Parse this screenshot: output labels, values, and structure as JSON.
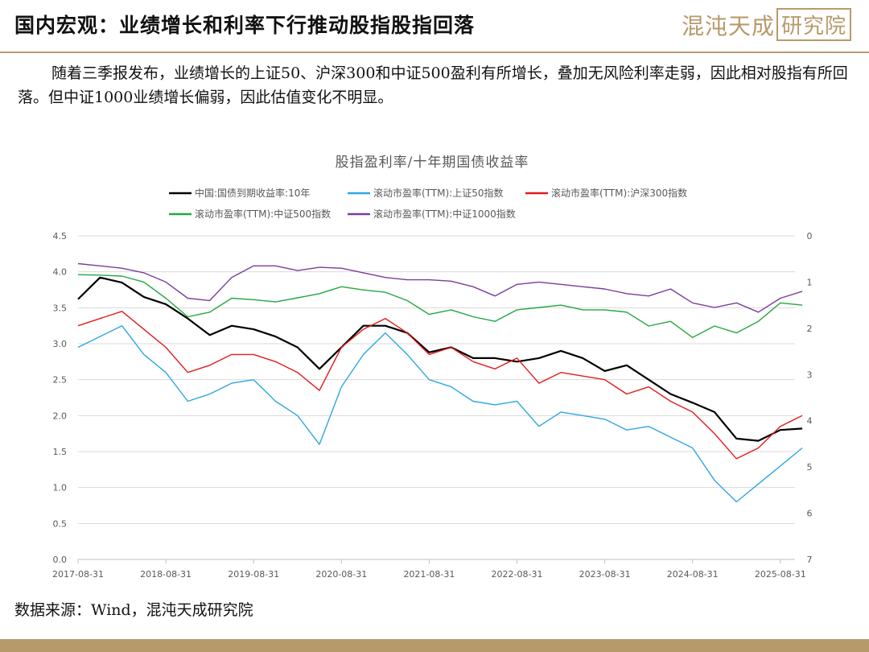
{
  "header": {
    "title": "国内宏观：业绩增长和利率下行推动股指股指回落",
    "logo_text": "混沌天成",
    "logo_box_text": "研究院"
  },
  "body_text": "随着三季报发布，业绩增长的上证50、沪深300和中证500盈利有所增长，叠加无风险利率走弱，因此相对股指有所回落。但中证1000业绩增长偏弱，因此估值变化不明显。",
  "source": "数据来源：Wind，混沌天成研究院",
  "colors": {
    "accent": "#b79a6a"
  },
  "chart_data": {
    "type": "line",
    "title": "股指盈利率/十年期国债收益率",
    "x_ticks": [
      "2017-08-31",
      "2018-08-31",
      "2019-08-31",
      "2020-08-31",
      "2021-08-31",
      "2022-08-31",
      "2023-08-31",
      "2024-08-31",
      "2025-08-31"
    ],
    "x": [
      "2017-08",
      "2017-11",
      "2018-02",
      "2018-05",
      "2018-08",
      "2018-11",
      "2019-02",
      "2019-05",
      "2019-08",
      "2019-11",
      "2020-02",
      "2020-05",
      "2020-08",
      "2020-11",
      "2021-02",
      "2021-05",
      "2021-08",
      "2021-11",
      "2022-02",
      "2022-05",
      "2022-08",
      "2022-11",
      "2023-02",
      "2023-05",
      "2023-08",
      "2023-11",
      "2024-02",
      "2024-05",
      "2024-08",
      "2024-11",
      "2025-02",
      "2025-05",
      "2025-08",
      "2025-11"
    ],
    "left_axis": {
      "ylim": [
        0,
        4.5
      ],
      "ticks": [
        "0.0",
        "0.5",
        "1.0",
        "1.5",
        "2.0",
        "2.5",
        "3.0",
        "3.5",
        "4.0",
        "4.5"
      ]
    },
    "right_axis": {
      "ylim": [
        0,
        7
      ],
      "inverted": true,
      "ticks": [
        "0",
        "1",
        "2",
        "3",
        "4",
        "5",
        "6",
        "7"
      ]
    },
    "grid": true,
    "legend_position": "top",
    "series": [
      {
        "name": "中国:国债到期收益率:10年",
        "color": "#000000",
        "axis": "left",
        "values": [
          3.62,
          3.92,
          3.85,
          3.65,
          3.55,
          3.35,
          3.12,
          3.25,
          3.2,
          3.1,
          2.95,
          2.65,
          2.95,
          3.25,
          3.25,
          3.15,
          2.88,
          2.95,
          2.8,
          2.8,
          2.75,
          2.8,
          2.9,
          2.8,
          2.62,
          2.7,
          2.5,
          2.3,
          2.18,
          2.05,
          1.68,
          1.65,
          1.8,
          1.82
        ]
      },
      {
        "name": "滚动市盈率(TTM):上证50指数",
        "color": "#2ea7e0",
        "axis": "left",
        "values": [
          2.95,
          3.1,
          3.25,
          2.85,
          2.6,
          2.2,
          2.3,
          2.45,
          2.5,
          2.2,
          2.0,
          1.6,
          2.4,
          2.85,
          3.15,
          2.85,
          2.5,
          2.4,
          2.2,
          2.15,
          2.2,
          1.85,
          2.05,
          2.0,
          1.95,
          1.8,
          1.85,
          1.7,
          1.55,
          1.1,
          0.8,
          1.05,
          1.3,
          1.55
        ]
      },
      {
        "name": "滚动市盈率(TTM):沪深300指数",
        "color": "#e31b1b",
        "axis": "left",
        "values": [
          3.25,
          3.35,
          3.45,
          3.2,
          2.95,
          2.6,
          2.7,
          2.85,
          2.85,
          2.75,
          2.6,
          2.35,
          2.95,
          3.2,
          3.35,
          3.15,
          2.85,
          2.95,
          2.75,
          2.65,
          2.8,
          2.45,
          2.6,
          2.55,
          2.5,
          2.3,
          2.4,
          2.2,
          2.05,
          1.75,
          1.4,
          1.55,
          1.85,
          2.0
        ]
      },
      {
        "name": "滚动市盈率(TTM):中证500指数",
        "color": "#23a83f",
        "axis": "right",
        "values": [
          0.84,
          0.85,
          0.87,
          1.0,
          1.35,
          1.75,
          1.65,
          1.35,
          1.38,
          1.43,
          1.34,
          1.25,
          1.1,
          1.17,
          1.22,
          1.4,
          1.7,
          1.6,
          1.75,
          1.85,
          1.6,
          1.55,
          1.5,
          1.6,
          1.6,
          1.65,
          1.95,
          1.85,
          2.2,
          1.95,
          2.1,
          1.85,
          1.45,
          1.5
        ]
      },
      {
        "name": "滚动市盈率(TTM):中证1000指数",
        "color": "#7a3d9a",
        "axis": "right",
        "values": [
          0.6,
          0.65,
          0.7,
          0.8,
          1.0,
          1.35,
          1.4,
          0.9,
          0.65,
          0.65,
          0.75,
          0.68,
          0.7,
          0.8,
          0.9,
          0.95,
          0.95,
          0.98,
          1.1,
          1.3,
          1.05,
          1.0,
          1.05,
          1.1,
          1.15,
          1.25,
          1.3,
          1.15,
          1.45,
          1.55,
          1.45,
          1.65,
          1.35,
          1.2
        ]
      }
    ]
  }
}
